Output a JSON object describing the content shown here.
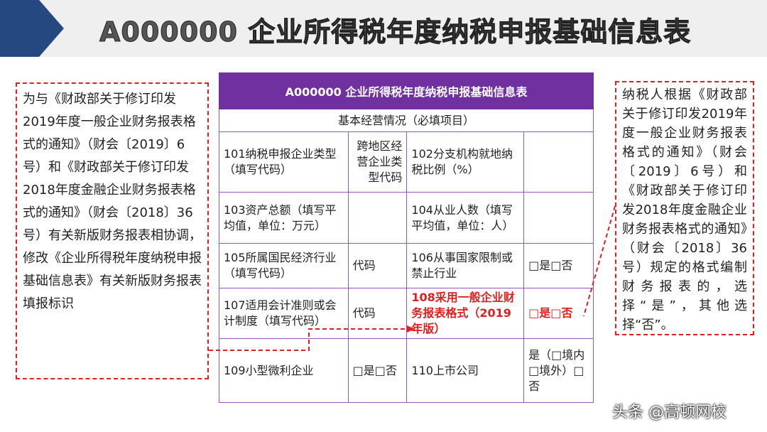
{
  "slide_title": "A000000 企业所得税年度纳税申报基础信息表",
  "left_note": "为与《财政部关于修订印发2019年度一般企业财务报表格式的通知》（财会〔2019〕6号）和《财政部关于修订印发2018年度金融企业财务报表格式的通知》（财会〔2018〕36号）有关新版财务报表相协调，修改《企业所得税年度纳税申报基础信息表》有关新版财务报表填报标识",
  "right_note": "纳税人根据《财政部关于修订印发2019年度一般企业财务报表格式的通知》（财会〔2019〕6号）和《财政部关于修订印发2018年度金融企业财务报表格式的通知》（财会〔2018〕36号）规定的格式编制财务报表的，选择“是”，其他选择“否”。",
  "table": {
    "title": "A000000 企业所得税年度纳税申报基础信息表",
    "section": "基本经营情况（必填项目）",
    "rows": [
      [
        "101纳税申报企业类型（填写代码）",
        "跨地区经营企业类型代码",
        "102分支机构就地纳税比例（%）",
        ""
      ],
      [
        "103资产总额（填写平均值，单位：万元）",
        "",
        "104从业人数（填写平均值，单位：人）",
        ""
      ],
      [
        "105所属国民经济行业（填写代码）",
        "代码",
        "106从事国家限制或禁止行业",
        "□是□否"
      ],
      [
        "107适用会计准则或会计制度（填写代码）",
        "代码",
        "108采用一般企业财务报表格式（2019年版）",
        "□是□否"
      ],
      [
        "109小型微利企业",
        "□是□否",
        "110上市公司",
        "是（□境内□境外）□否"
      ]
    ]
  },
  "highlight_color": "#e02020",
  "header_color": "#7030a0",
  "watermark": "头条 @高顿网校"
}
